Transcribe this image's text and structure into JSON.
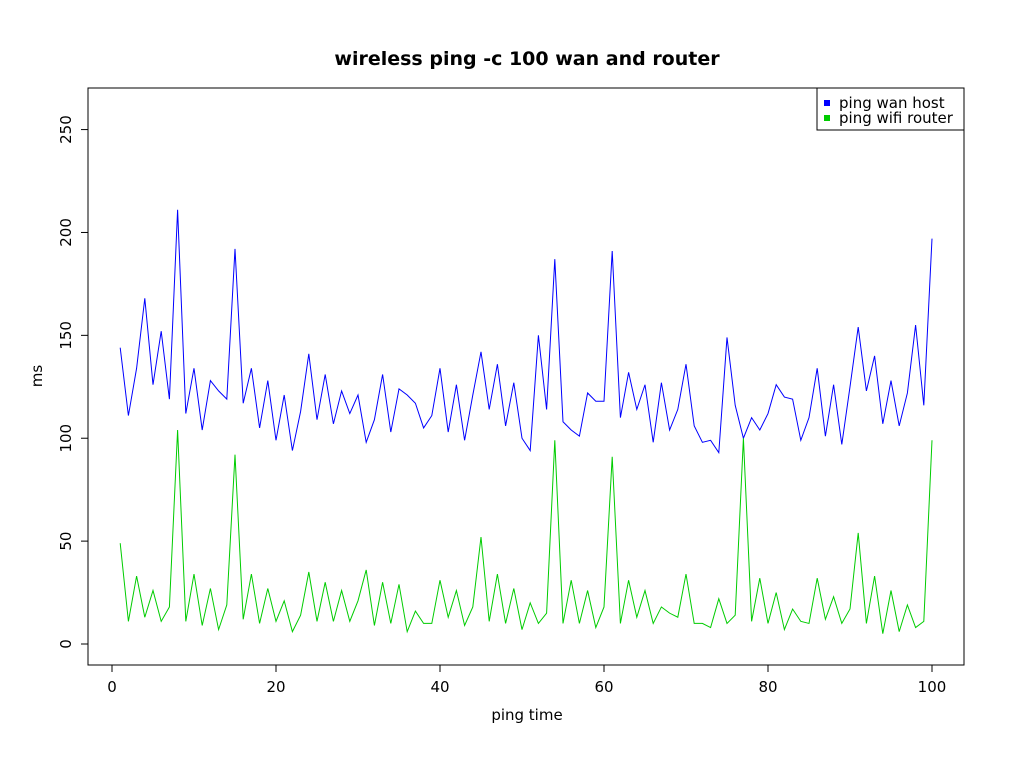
{
  "chart_data": {
    "type": "line",
    "title": "wireless ping -c 100 wan and router",
    "xlabel": "ping time",
    "ylabel": "ms",
    "xlim": [
      0,
      100
    ],
    "ylim": [
      0,
      260
    ],
    "xticks": [
      "0",
      "20",
      "40",
      "60",
      "80",
      "100"
    ],
    "yticks": [
      "0",
      "50",
      "100",
      "150",
      "200",
      "250"
    ],
    "grid": false,
    "legend_position": "top-right",
    "x": [
      1,
      2,
      3,
      4,
      5,
      6,
      7,
      8,
      9,
      10,
      11,
      12,
      13,
      14,
      15,
      16,
      17,
      18,
      19,
      20,
      21,
      22,
      23,
      24,
      25,
      26,
      27,
      28,
      29,
      30,
      31,
      32,
      33,
      34,
      35,
      36,
      37,
      38,
      39,
      40,
      41,
      42,
      43,
      44,
      45,
      46,
      47,
      48,
      49,
      50,
      51,
      52,
      53,
      54,
      55,
      56,
      57,
      58,
      59,
      60,
      61,
      62,
      63,
      64,
      65,
      66,
      67,
      68,
      69,
      70,
      71,
      72,
      73,
      74,
      75,
      76,
      77,
      78,
      79,
      80,
      81,
      82,
      83,
      84,
      85,
      86,
      87,
      88,
      89,
      90,
      91,
      92,
      93,
      94,
      95,
      96,
      97,
      98,
      99,
      100
    ],
    "series": [
      {
        "name": "ping wan host",
        "color": "#0000ff",
        "values": [
          144,
          111,
          134,
          168,
          126,
          152,
          119,
          211,
          112,
          134,
          104,
          128,
          123,
          119,
          192,
          117,
          134,
          105,
          128,
          99,
          121,
          94,
          113,
          141,
          109,
          131,
          107,
          123,
          112,
          121,
          98,
          109,
          131,
          103,
          124,
          121,
          117,
          105,
          111,
          134,
          103,
          126,
          99,
          121,
          142,
          114,
          136,
          106,
          127,
          100,
          94,
          150,
          114,
          187,
          108,
          104,
          101,
          122,
          118,
          118,
          191,
          110,
          132,
          114,
          126,
          98,
          127,
          104,
          114,
          136,
          106,
          98,
          99,
          93,
          149,
          116,
          100,
          110,
          104,
          112,
          126,
          120,
          119,
          99,
          110,
          134,
          101,
          126,
          97,
          125,
          154,
          123,
          140,
          107,
          128,
          106,
          122,
          155,
          116,
          197
        ]
      },
      {
        "name": "ping wifi router",
        "color": "#00cc00",
        "values": [
          49,
          11,
          33,
          13,
          26,
          11,
          18,
          104,
          11,
          34,
          9,
          27,
          7,
          19,
          92,
          12,
          34,
          10,
          27,
          11,
          21,
          6,
          14,
          35,
          11,
          30,
          11,
          26,
          11,
          21,
          36,
          9,
          30,
          10,
          29,
          6,
          16,
          10,
          10,
          31,
          13,
          26,
          9,
          18,
          52,
          11,
          34,
          10,
          27,
          7,
          20,
          10,
          15,
          99,
          10,
          31,
          10,
          26,
          8,
          18,
          91,
          10,
          31,
          13,
          26,
          10,
          18,
          15,
          13,
          34,
          10,
          10,
          8,
          22,
          10,
          14,
          100,
          11,
          32,
          10,
          25,
          7,
          17,
          11,
          10,
          32,
          12,
          23,
          10,
          17,
          54,
          10,
          33,
          5,
          26,
          6,
          19,
          8,
          11,
          99
        ]
      }
    ]
  }
}
